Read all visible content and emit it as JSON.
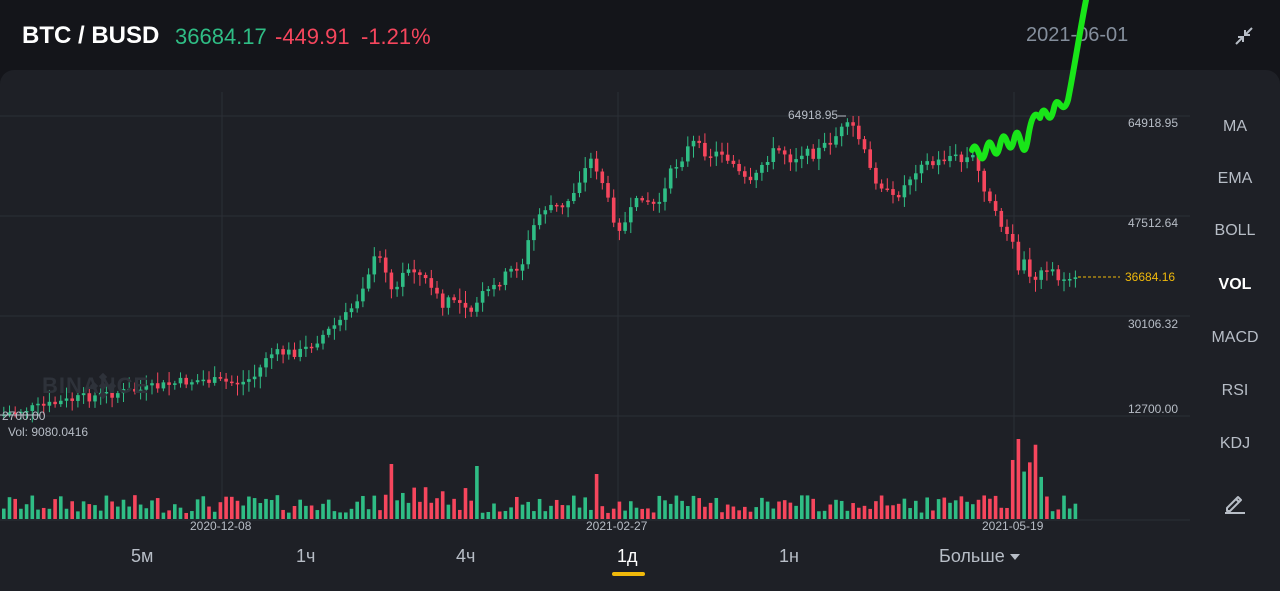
{
  "header": {
    "pair": "BTC / BUSD",
    "price": "36684.17",
    "change": "-449.91",
    "change_pct": "-1.21%",
    "date": "2021-06-01",
    "collapse_icon": "collapse-arrows-icon"
  },
  "chart": {
    "high_marker": "64918.95",
    "price_axis": [
      "64918.95",
      "47512.64",
      "30106.32",
      "12700.00"
    ],
    "current_price_label": "36684.16",
    "low_left_label": "2700.00",
    "volume_label": "Vol: 9080.0416",
    "date_labels": [
      "2020-12-08",
      "2021-02-27",
      "2021-05-19"
    ],
    "watermark": "BINANCE",
    "colors": {
      "up": "#2fbd85",
      "down": "#f6465d",
      "accent": "#f0b90b",
      "annotation": "#19e619"
    }
  },
  "indicators": [
    "MA",
    "EMA",
    "BOLL",
    "VOL",
    "MACD",
    "RSI",
    "KDJ"
  ],
  "indicator_active": "VOL",
  "draw_icon": "pencil-icon",
  "tabs": [
    "5м",
    "1ч",
    "4ч",
    "1д",
    "1н",
    "Больше"
  ],
  "tab_active": "1д"
}
